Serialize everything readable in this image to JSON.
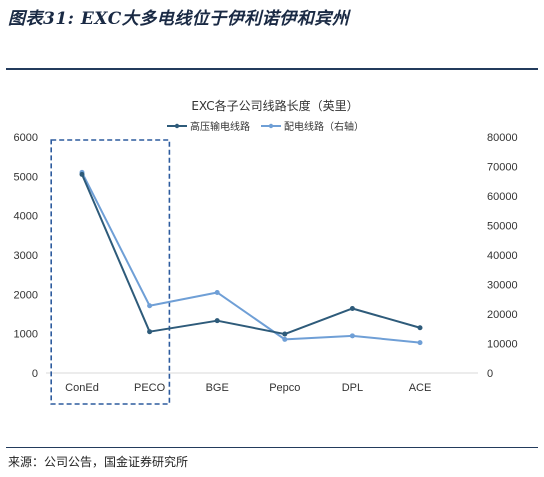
{
  "figure": {
    "caption": "图表31: EXC大多电线位于伊利诺伊和宾州",
    "source": "来源：公司公告，国金证券研究所"
  },
  "chart_data": {
    "type": "line",
    "title": "EXC各子公司线路长度（英里）",
    "categories": [
      "ConEd",
      "PECO",
      "BGE",
      "Pepco",
      "DPL",
      "ACE"
    ],
    "series": [
      {
        "name": "高压输电线路",
        "axis": "left",
        "color": "#2e5b7a",
        "values": [
          5050,
          1050,
          1330,
          990,
          1640,
          1150
        ]
      },
      {
        "name": "配电线路（右轴）",
        "axis": "right",
        "color": "#6f9fd6",
        "values": [
          68000,
          22800,
          27300,
          11400,
          12600,
          10300
        ]
      }
    ],
    "yleft": {
      "lim": [
        0,
        6000
      ],
      "ticks": [
        0,
        1000,
        2000,
        3000,
        4000,
        5000,
        6000
      ]
    },
    "yright": {
      "lim": [
        0,
        80000
      ],
      "ticks": [
        0,
        10000,
        20000,
        30000,
        40000,
        50000,
        60000,
        70000,
        80000
      ]
    },
    "grid": false,
    "legend": "top-center",
    "highlight": {
      "categories": [
        "ConEd",
        "PECO"
      ],
      "style": "dashed-box",
      "color": "#2d5b9e"
    }
  }
}
